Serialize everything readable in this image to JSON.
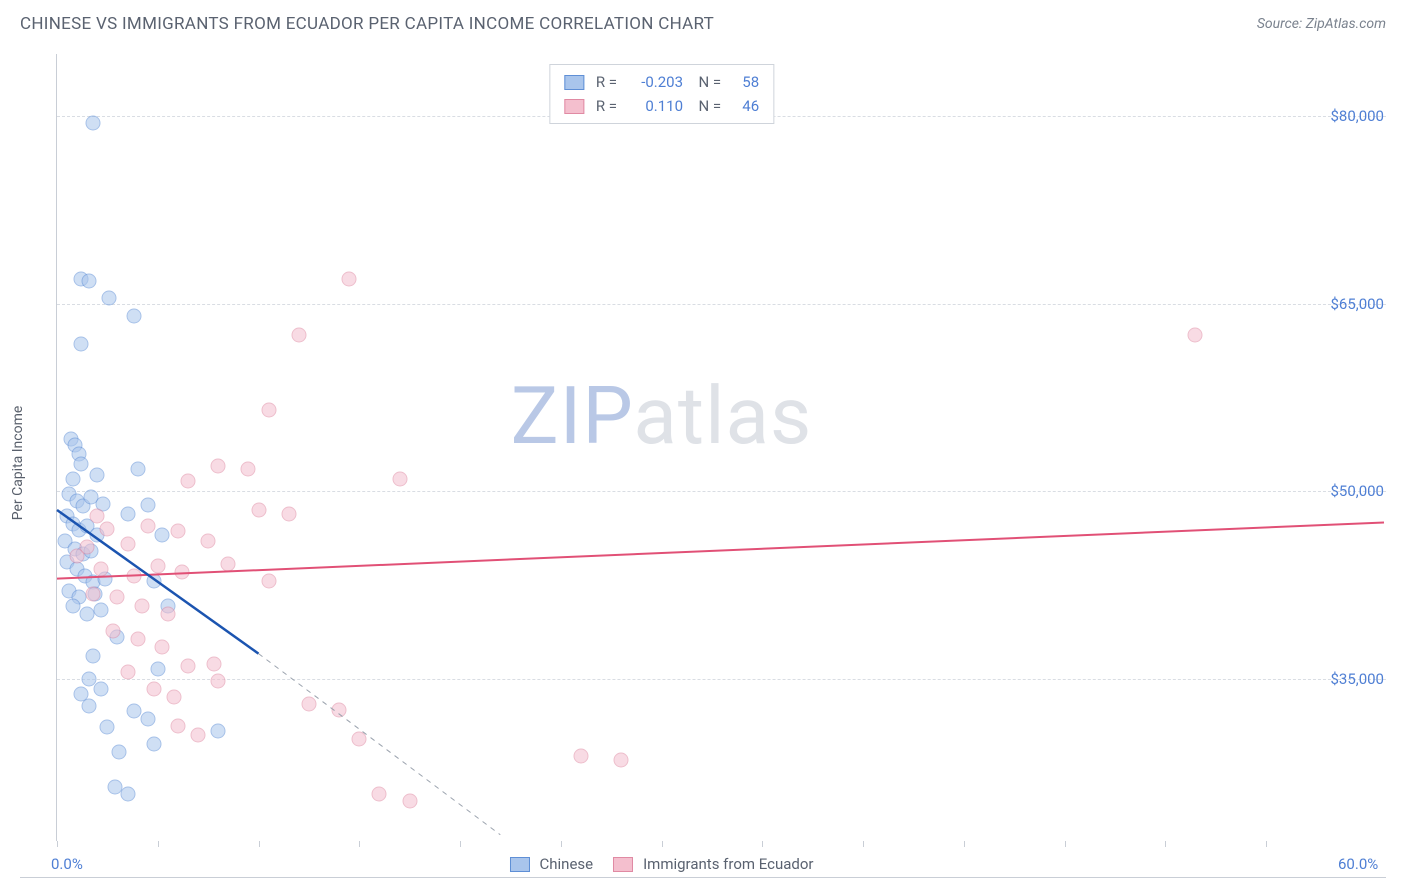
{
  "title": "CHINESE VS IMMIGRANTS FROM ECUADOR PER CAPITA INCOME CORRELATION CHART",
  "source": "Source: ZipAtlas.com",
  "ylabel": "Per Capita Income",
  "watermark_a": "ZIP",
  "watermark_b": "atlas",
  "chart": {
    "type": "scatter",
    "xlim": [
      0,
      60
    ],
    "ylim": [
      22000,
      85000
    ],
    "yticks": [
      {
        "v": 35000,
        "label": "$35,000"
      },
      {
        "v": 50000,
        "label": "$50,000"
      },
      {
        "v": 65000,
        "label": "$65,000"
      },
      {
        "v": 80000,
        "label": "$80,000"
      }
    ],
    "xticks_major": [
      0,
      60
    ],
    "xticks_minor": [
      5,
      10,
      15,
      20,
      25,
      30,
      35,
      40,
      45,
      50,
      55
    ],
    "xtick_labels": {
      "0": "0.0%",
      "60": "60.0%"
    },
    "background": "#ffffff",
    "grid_color": "#d9dde3",
    "axis_color": "#c9ced6",
    "series": [
      {
        "name": "Chinese",
        "fill": "#a9c5ec",
        "stroke": "#5f8fd6",
        "fill_opacity": 0.55,
        "marker_size": 15,
        "R": "-0.203",
        "N": "58",
        "trend": {
          "x1": 0,
          "y1": 48500,
          "x2": 10,
          "y2": 37000,
          "solid_to_x": 10,
          "ext_x": 22,
          "ext_y": 22500,
          "color": "#1b54b0",
          "width": 2.5
        },
        "points": [
          [
            1.8,
            79500
          ],
          [
            1.2,
            67000
          ],
          [
            1.6,
            66800
          ],
          [
            2.6,
            65500
          ],
          [
            3.8,
            64000
          ],
          [
            1.2,
            61800
          ],
          [
            0.7,
            54200
          ],
          [
            0.9,
            53700
          ],
          [
            1.1,
            53000
          ],
          [
            1.2,
            52200
          ],
          [
            0.8,
            51000
          ],
          [
            2.0,
            51300
          ],
          [
            0.6,
            49800
          ],
          [
            1.0,
            49200
          ],
          [
            1.3,
            48800
          ],
          [
            1.7,
            49500
          ],
          [
            2.3,
            49000
          ],
          [
            0.5,
            48000
          ],
          [
            0.8,
            47400
          ],
          [
            1.1,
            46900
          ],
          [
            1.5,
            47200
          ],
          [
            2.0,
            46500
          ],
          [
            0.4,
            46000
          ],
          [
            0.9,
            45400
          ],
          [
            1.3,
            45000
          ],
          [
            1.7,
            45200
          ],
          [
            0.5,
            44300
          ],
          [
            1.0,
            43800
          ],
          [
            1.4,
            43200
          ],
          [
            1.8,
            42700
          ],
          [
            2.4,
            43000
          ],
          [
            0.6,
            42000
          ],
          [
            1.1,
            41500
          ],
          [
            1.9,
            41800
          ],
          [
            0.8,
            40800
          ],
          [
            1.5,
            40200
          ],
          [
            2.2,
            40500
          ],
          [
            3.5,
            48200
          ],
          [
            4.5,
            48900
          ],
          [
            4.0,
            51800
          ],
          [
            5.2,
            46500
          ],
          [
            4.8,
            42800
          ],
          [
            5.5,
            40800
          ],
          [
            3.0,
            38300
          ],
          [
            1.8,
            36800
          ],
          [
            5.0,
            35800
          ],
          [
            3.8,
            32400
          ],
          [
            4.5,
            31800
          ],
          [
            4.8,
            29800
          ],
          [
            1.6,
            35000
          ],
          [
            2.5,
            31100
          ],
          [
            3.1,
            29100
          ],
          [
            1.2,
            33800
          ],
          [
            1.6,
            32800
          ],
          [
            2.2,
            34200
          ],
          [
            8.0,
            30800
          ],
          [
            2.9,
            26300
          ],
          [
            3.5,
            25800
          ]
        ]
      },
      {
        "name": "Immigrants from Ecuador",
        "fill": "#f4bfce",
        "stroke": "#e08aa3",
        "fill_opacity": 0.55,
        "marker_size": 15,
        "R": "0.110",
        "N": "46",
        "trend": {
          "x1": 0,
          "y1": 43000,
          "x2": 60,
          "y2": 47500,
          "color": "#e15076",
          "width": 2
        },
        "points": [
          [
            14.5,
            67000
          ],
          [
            12.0,
            62500
          ],
          [
            56.5,
            62500
          ],
          [
            10.5,
            56500
          ],
          [
            8.0,
            52000
          ],
          [
            9.5,
            51800
          ],
          [
            6.5,
            50800
          ],
          [
            17.0,
            51000
          ],
          [
            10.0,
            48500
          ],
          [
            11.5,
            48200
          ],
          [
            4.5,
            47200
          ],
          [
            6.0,
            46800
          ],
          [
            7.5,
            46000
          ],
          [
            2.0,
            48000
          ],
          [
            2.5,
            47000
          ],
          [
            3.5,
            45800
          ],
          [
            1.5,
            45500
          ],
          [
            1.0,
            44800
          ],
          [
            2.2,
            43800
          ],
          [
            3.8,
            43200
          ],
          [
            5.0,
            44000
          ],
          [
            6.2,
            43500
          ],
          [
            8.5,
            44200
          ],
          [
            10.5,
            42800
          ],
          [
            3.0,
            41500
          ],
          [
            4.2,
            40800
          ],
          [
            5.5,
            40200
          ],
          [
            1.8,
            41800
          ],
          [
            2.8,
            38800
          ],
          [
            4.0,
            38200
          ],
          [
            5.2,
            37500
          ],
          [
            6.5,
            36000
          ],
          [
            7.8,
            36200
          ],
          [
            3.5,
            35500
          ],
          [
            4.8,
            34200
          ],
          [
            5.8,
            33500
          ],
          [
            8.0,
            34800
          ],
          [
            12.5,
            33000
          ],
          [
            15.0,
            30200
          ],
          [
            26.0,
            28800
          ],
          [
            28.0,
            28500
          ],
          [
            16.0,
            25800
          ],
          [
            17.5,
            25200
          ],
          [
            14.0,
            32500
          ],
          [
            6.0,
            31200
          ],
          [
            7.0,
            30500
          ]
        ]
      }
    ]
  }
}
